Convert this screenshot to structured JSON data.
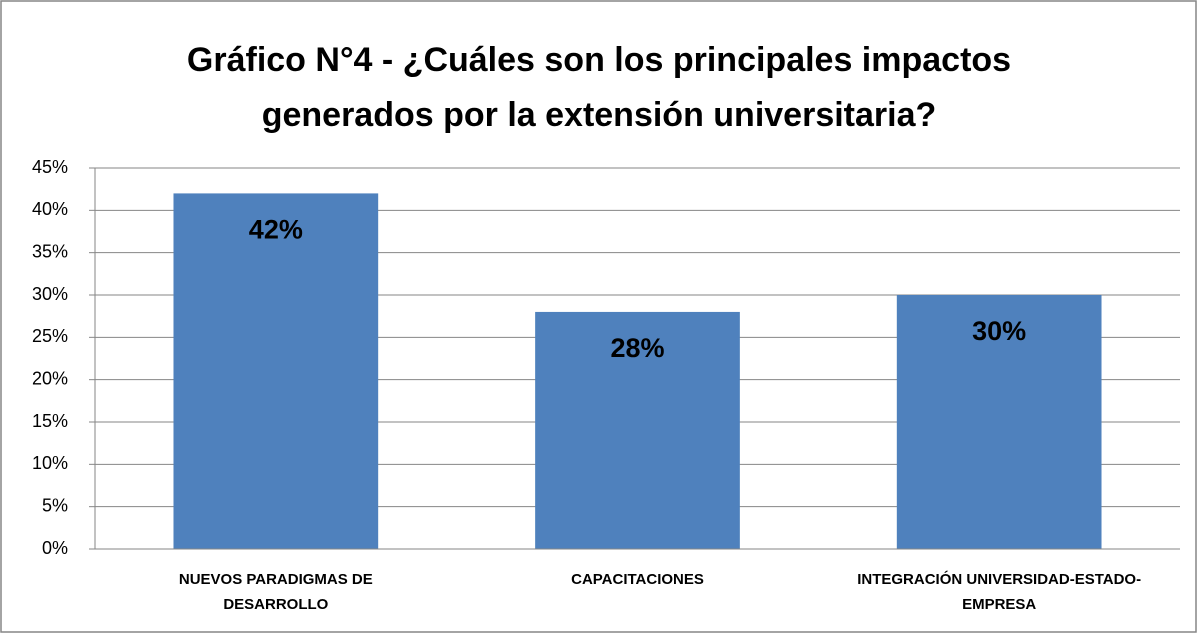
{
  "chart_data": {
    "type": "bar",
    "title": [
      "Gráfico N°4 - ¿Cuáles son los principales impactos",
      "generados por la extensión universitaria?"
    ],
    "categories": [
      "NUEVOS PARADIGMAS DE DESARROLLO",
      "CAPACITACIONES",
      "INTEGRACIÓN UNIVERSIDAD-ESTADO-EMPRESA"
    ],
    "values": [
      42,
      28,
      30
    ],
    "value_labels": [
      "42%",
      "28%",
      "30%"
    ],
    "color": "#4f81bd",
    "ylim": [
      0,
      45
    ],
    "yticks": [
      {
        "value": 0,
        "label": "0%"
      },
      {
        "value": 5,
        "label": "5%"
      },
      {
        "value": 10,
        "label": "10%"
      },
      {
        "value": 15,
        "label": "15%"
      },
      {
        "value": 20,
        "label": "20%"
      },
      {
        "value": 25,
        "label": "25%"
      },
      {
        "value": 30,
        "label": "30%"
      },
      {
        "value": 35,
        "label": "35%"
      },
      {
        "value": 40,
        "label": "40%"
      },
      {
        "value": 45,
        "label": "45%"
      }
    ],
    "grid": true
  }
}
